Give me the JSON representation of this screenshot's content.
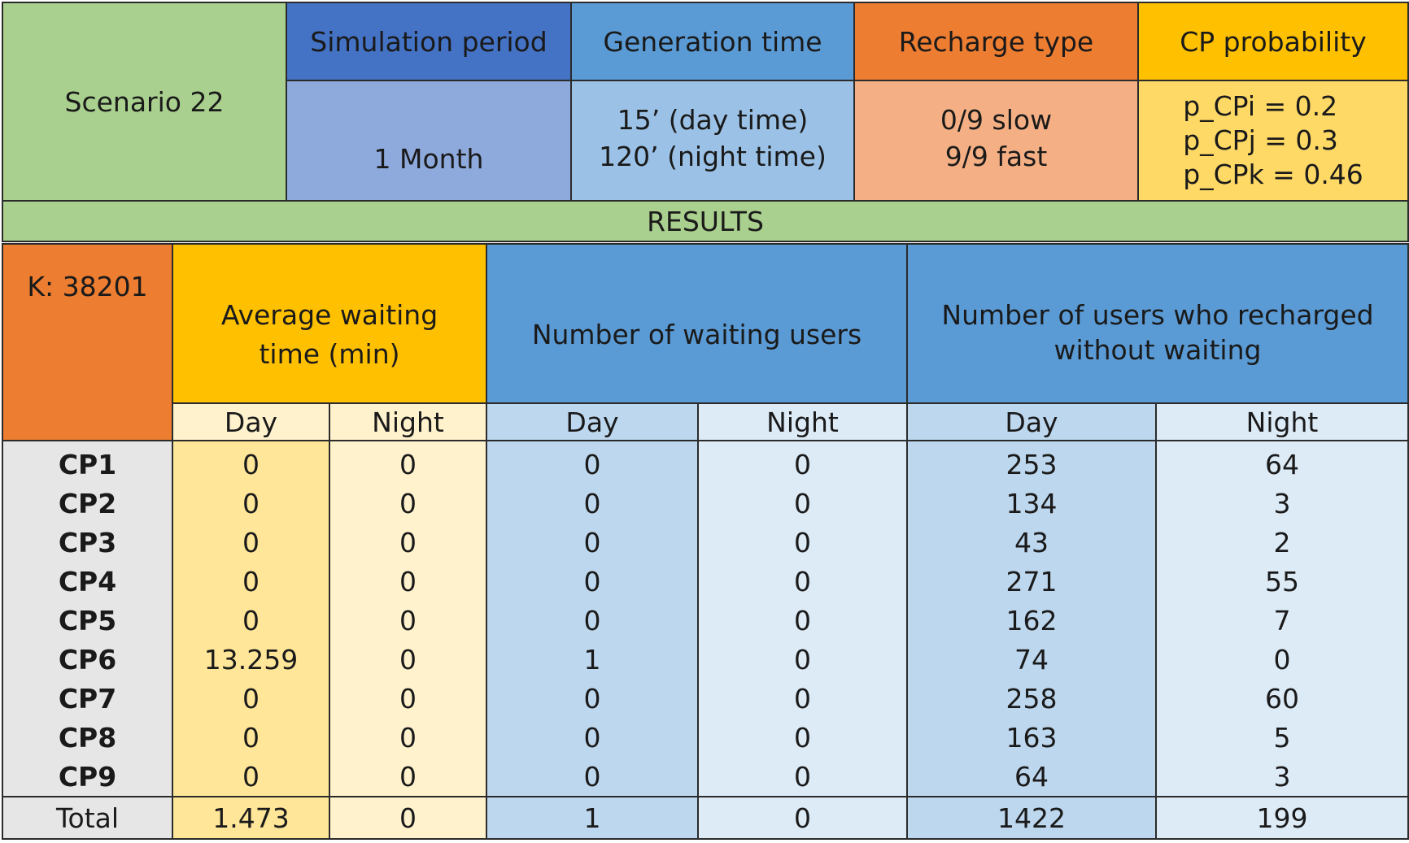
{
  "scenario": {
    "label": "Scenario 22",
    "headers": {
      "simulation_period": "Simulation period",
      "generation_time": "Generation time",
      "recharge_type": "Recharge type",
      "cp_probability": "CP probability"
    },
    "values": {
      "simulation_period": "1 Month",
      "generation_time": [
        "15’ (day time)",
        "120’ (night time)"
      ],
      "recharge_type": [
        "0/9 slow",
        "9/9 fast"
      ],
      "cp_probability": [
        "p_CPi = 0.2",
        "p_CPj = 0.3",
        "p_CPk = 0.46"
      ]
    }
  },
  "results_label": "RESULTS",
  "results": {
    "k_label": "K: 38201",
    "group_headers": {
      "avg_wait": "Average waiting time (min)",
      "waiting_users": "Number of waiting users",
      "recharged_no_wait": "Number of users who recharged without waiting"
    },
    "sub_headers": [
      "Day",
      "Night",
      "Day",
      "Night",
      "Day",
      "Night"
    ],
    "rows": [
      {
        "cp": "CP1",
        "values": [
          "0",
          "0",
          "0",
          "0",
          "253",
          "64"
        ]
      },
      {
        "cp": "CP2",
        "values": [
          "0",
          "0",
          "0",
          "0",
          "134",
          "3"
        ]
      },
      {
        "cp": "CP3",
        "values": [
          "0",
          "0",
          "0",
          "0",
          "43",
          "2"
        ]
      },
      {
        "cp": "CP4",
        "values": [
          "0",
          "0",
          "0",
          "0",
          "271",
          "55"
        ]
      },
      {
        "cp": "CP5",
        "values": [
          "0",
          "0",
          "0",
          "0",
          "162",
          "7"
        ]
      },
      {
        "cp": "CP6",
        "values": [
          "13.259",
          "0",
          "1",
          "0",
          "74",
          "0"
        ]
      },
      {
        "cp": "CP7",
        "values": [
          "0",
          "0",
          "0",
          "0",
          "258",
          "60"
        ]
      },
      {
        "cp": "CP8",
        "values": [
          "0",
          "0",
          "0",
          "0",
          "163",
          "5"
        ]
      },
      {
        "cp": "CP9",
        "values": [
          "0",
          "0",
          "0",
          "0",
          "64",
          "3"
        ]
      }
    ],
    "total": {
      "label": "Total",
      "values": [
        "1.473",
        "0",
        "1",
        "0",
        "1422",
        "199"
      ]
    }
  },
  "colors": {
    "green": "#a9d08e",
    "dark_blue": "#4472c4",
    "mid_blue": "#8ea9db",
    "sky_blue": "#5b9bd5",
    "pale_sky": "#9bc2e6",
    "orange": "#ed7d31",
    "light_orange": "#f4b084",
    "gold": "#ffc000",
    "light_gold": "#ffd966",
    "yellow_day": "#ffe699",
    "yellow_night": "#fff2cc",
    "blue_day": "#bdd7ee",
    "blue_night": "#ddebf7",
    "grey": "#e7e6e6"
  }
}
